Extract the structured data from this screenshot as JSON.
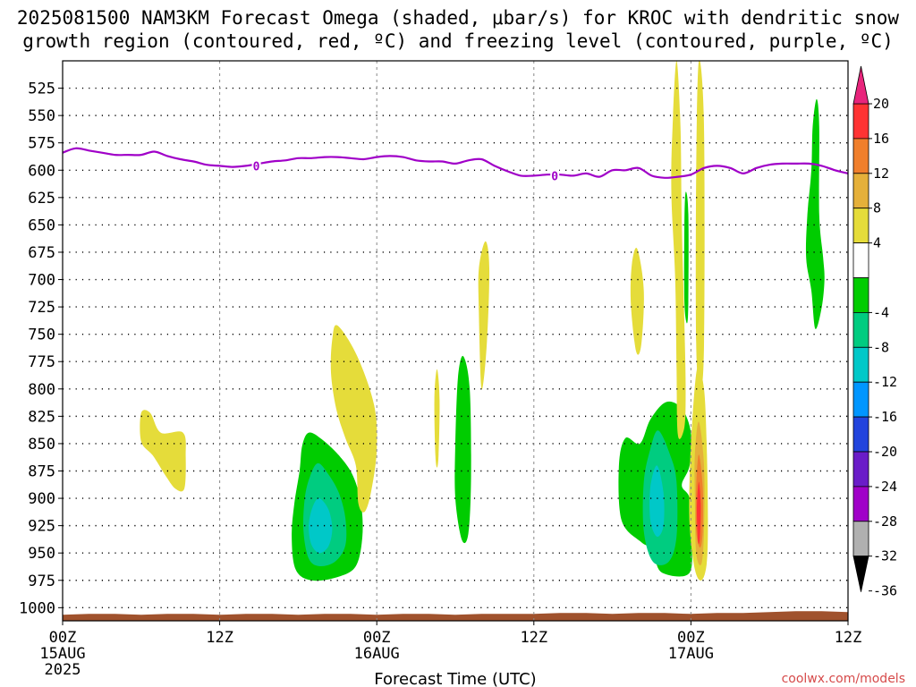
{
  "title_line1": "2025081500 NAM3KM Forecast Omega (shaded, μbar/s) for KROC with dendritic snow",
  "title_line2": "growth region (contoured, red, ºC) and freezing level (contoured, purple, ºC)",
  "xlabel": "Forecast Time (UTC)",
  "credit": "coolwx.com/models",
  "chart_data": {
    "type": "heatmap",
    "x_axis": {
      "unit": "hours since 2025-08-15 00Z",
      "range": [
        0,
        60
      ],
      "ticks": [
        {
          "x": 0,
          "label": [
            "00Z",
            "15AUG",
            "2025"
          ]
        },
        {
          "x": 12,
          "label": [
            "12Z"
          ]
        },
        {
          "x": 24,
          "label": [
            "00Z",
            "16AUG"
          ]
        },
        {
          "x": 36,
          "label": [
            "12Z"
          ]
        },
        {
          "x": 48,
          "label": [
            "00Z",
            "17AUG"
          ]
        },
        {
          "x": 60,
          "label": [
            "12Z"
          ]
        }
      ]
    },
    "y_axis": {
      "unit": "hPa",
      "range": [
        1012,
        500
      ],
      "ticks": [
        525,
        550,
        575,
        600,
        625,
        650,
        675,
        700,
        725,
        750,
        775,
        800,
        825,
        850,
        875,
        900,
        925,
        950,
        975,
        1000
      ]
    },
    "colorbar": {
      "levels": [
        "20",
        "16",
        "12",
        "8",
        "4",
        "-4",
        "-8",
        "-12",
        "-16",
        "-20",
        "-24",
        "-28",
        "-32",
        "-36"
      ],
      "bins": [
        {
          "from": 16,
          "to": 20,
          "color": "#ff3333"
        },
        {
          "from": 12,
          "to": 16,
          "color": "#f07f2c"
        },
        {
          "from": 8,
          "to": 12,
          "color": "#e5b03a"
        },
        {
          "from": 4,
          "to": 8,
          "color": "#e5dc3a"
        },
        {
          "from": -4,
          "to": 4,
          "color": "#ffffff"
        },
        {
          "from": -8,
          "to": -4,
          "color": "#00cc00"
        },
        {
          "from": -12,
          "to": -8,
          "color": "#00cc80"
        },
        {
          "from": -16,
          "to": -12,
          "color": "#00c8c8"
        },
        {
          "from": -20,
          "to": -16,
          "color": "#0096ff"
        },
        {
          "from": -24,
          "to": -20,
          "color": "#2244dd"
        },
        {
          "from": -28,
          "to": -24,
          "color": "#6a1cc8"
        },
        {
          "from": -32,
          "to": -28,
          "color": "#a000c8"
        },
        {
          "from": -36,
          "to": -32,
          "color": "#b0b0b0"
        }
      ],
      "top_arrow_color": "#e8257c",
      "bottom_arrow_color": "#000000"
    },
    "freezing_level": {
      "label": "0",
      "color": "#a000c8",
      "points": [
        [
          0,
          584
        ],
        [
          1,
          580
        ],
        [
          2,
          582
        ],
        [
          3,
          584
        ],
        [
          4,
          586
        ],
        [
          5,
          586
        ],
        [
          6,
          586
        ],
        [
          7,
          583
        ],
        [
          8,
          587
        ],
        [
          9,
          590
        ],
        [
          10,
          592
        ],
        [
          11,
          595
        ],
        [
          12,
          596
        ],
        [
          13,
          597
        ],
        [
          14,
          596
        ],
        [
          15,
          594
        ],
        [
          16,
          592
        ],
        [
          17,
          591
        ],
        [
          18,
          589
        ],
        [
          19,
          589
        ],
        [
          20,
          588
        ],
        [
          21,
          588
        ],
        [
          22,
          589
        ],
        [
          23,
          590
        ],
        [
          24,
          588
        ],
        [
          25,
          587
        ],
        [
          26,
          588
        ],
        [
          27,
          591
        ],
        [
          28,
          592
        ],
        [
          29,
          592
        ],
        [
          30,
          594
        ],
        [
          31,
          591
        ],
        [
          32,
          590
        ],
        [
          33,
          596
        ],
        [
          34,
          601
        ],
        [
          35,
          605
        ],
        [
          36,
          605
        ],
        [
          37,
          604
        ],
        [
          38,
          604
        ],
        [
          39,
          605
        ],
        [
          40,
          603
        ],
        [
          41,
          606
        ],
        [
          42,
          600
        ],
        [
          43,
          600
        ],
        [
          44,
          598
        ],
        [
          45,
          605
        ],
        [
          46,
          607
        ],
        [
          47,
          606
        ],
        [
          48,
          604
        ],
        [
          49,
          598
        ],
        [
          50,
          596
        ],
        [
          51,
          598
        ],
        [
          52,
          603
        ],
        [
          53,
          598
        ],
        [
          54,
          595
        ],
        [
          55,
          594
        ],
        [
          56,
          594
        ],
        [
          57,
          594
        ],
        [
          58,
          596
        ],
        [
          59,
          600
        ],
        [
          60,
          603
        ]
      ]
    },
    "surface_pressure": {
      "approx": 1006,
      "color": "#a0522d"
    },
    "regions": [
      {
        "name": "omega-+4-8-region",
        "value_bin": "4 to 8",
        "color": "#e5dc3a",
        "outline": [
          [
            6.0,
            822
          ],
          [
            6.7,
            822
          ],
          [
            7.5,
            840
          ],
          [
            9.2,
            840
          ],
          [
            9.4,
            862
          ],
          [
            9.3,
            891
          ],
          [
            8.6,
            891
          ],
          [
            7.8,
            878
          ],
          [
            6.9,
            861
          ],
          [
            6.0,
            848
          ]
        ]
      },
      {
        "name": "omega--4--8-region",
        "value_bin": "-4 to -8",
        "color": "#00cc00",
        "outline": [
          [
            18.8,
            840
          ],
          [
            19.8,
            846
          ],
          [
            21.2,
            862
          ],
          [
            22.2,
            880
          ],
          [
            22.8,
            905
          ],
          [
            22.9,
            935
          ],
          [
            22.4,
            962
          ],
          [
            21.0,
            972
          ],
          [
            19.0,
            975
          ],
          [
            17.8,
            965
          ],
          [
            17.5,
            935
          ],
          [
            17.7,
            905
          ],
          [
            18.1,
            875
          ],
          [
            18.3,
            852
          ]
        ]
      },
      {
        "name": "omega--8--12-region",
        "value_bin": "-8 to -12",
        "color": "#00cc80",
        "outline": [
          [
            19.5,
            868
          ],
          [
            20.3,
            878
          ],
          [
            21.1,
            895
          ],
          [
            21.6,
            918
          ],
          [
            21.6,
            943
          ],
          [
            20.8,
            958
          ],
          [
            19.6,
            962
          ],
          [
            18.8,
            955
          ],
          [
            18.4,
            930
          ],
          [
            18.5,
            900
          ],
          [
            18.9,
            880
          ]
        ]
      },
      {
        "name": "omega--12--16-region",
        "value_bin": "-12 to -16",
        "color": "#00c8c8",
        "outline": [
          [
            19.6,
            900
          ],
          [
            20.3,
            910
          ],
          [
            20.6,
            928
          ],
          [
            20.3,
            944
          ],
          [
            19.6,
            950
          ],
          [
            19.0,
            942
          ],
          [
            18.8,
            925
          ],
          [
            19.1,
            908
          ]
        ]
      },
      {
        "name": "omega-+4-8-region",
        "value_bin": "4 to 8",
        "color": "#e5dc3a",
        "outline": [
          [
            21.0,
            742
          ],
          [
            22.5,
            770
          ],
          [
            23.8,
            815
          ],
          [
            24.0,
            855
          ],
          [
            23.6,
            892
          ],
          [
            23.1,
            912
          ],
          [
            22.6,
            905
          ],
          [
            22.4,
            870
          ],
          [
            21.6,
            845
          ],
          [
            20.9,
            818
          ],
          [
            20.5,
            785
          ],
          [
            20.6,
            755
          ]
        ]
      },
      {
        "name": "omega-+4-8-region",
        "value_bin": "4 to 8",
        "color": "#e5dc3a",
        "outline": [
          [
            28.6,
            782
          ],
          [
            28.8,
            810
          ],
          [
            28.7,
            865
          ],
          [
            28.5,
            865
          ],
          [
            28.4,
            810
          ]
        ]
      },
      {
        "name": "omega--4--8-region",
        "value_bin": "-4 to -8",
        "color": "#00cc00",
        "outline": [
          [
            30.6,
            770
          ],
          [
            31.1,
            800
          ],
          [
            31.2,
            880
          ],
          [
            31.0,
            932
          ],
          [
            30.5,
            938
          ],
          [
            30.0,
            900
          ],
          [
            30.0,
            850
          ],
          [
            30.2,
            790
          ]
        ]
      },
      {
        "name": "omega-+4-8-region",
        "value_bin": "4 to 8",
        "color": "#e5dc3a",
        "outline": [
          [
            32.3,
            665
          ],
          [
            32.6,
            690
          ],
          [
            32.4,
            760
          ],
          [
            32.0,
            800
          ],
          [
            31.8,
            730
          ],
          [
            31.8,
            690
          ]
        ]
      },
      {
        "name": "omega-+4-8-region",
        "value_bin": "4 to 8",
        "color": "#e5dc3a",
        "outline": [
          [
            43.9,
            672
          ],
          [
            44.4,
            710
          ],
          [
            44.2,
            760
          ],
          [
            43.8,
            765
          ],
          [
            43.4,
            720
          ],
          [
            43.5,
            685
          ]
        ]
      },
      {
        "name": "omega--4--8-region",
        "value_bin": "-4 to -8",
        "color": "#00cc00",
        "outline": [
          [
            46.1,
            812
          ],
          [
            47.3,
            818
          ],
          [
            48.0,
            840
          ],
          [
            47.9,
            870
          ],
          [
            47.3,
            888
          ],
          [
            47.9,
            900
          ],
          [
            48.0,
            930
          ],
          [
            47.9,
            968
          ],
          [
            45.8,
            968
          ],
          [
            45.2,
            952
          ],
          [
            45.0,
            945
          ],
          [
            44.2,
            940
          ],
          [
            42.7,
            920
          ],
          [
            42.5,
            870
          ],
          [
            43.0,
            845
          ],
          [
            44.1,
            850
          ],
          [
            44.9,
            828
          ]
        ]
      },
      {
        "name": "omega--8--12-region",
        "value_bin": "-8 to -12",
        "color": "#00cc80",
        "outline": [
          [
            45.5,
            838
          ],
          [
            46.4,
            860
          ],
          [
            46.9,
            885
          ],
          [
            46.9,
            935
          ],
          [
            46.3,
            958
          ],
          [
            45.1,
            958
          ],
          [
            44.4,
            930
          ],
          [
            44.4,
            885
          ],
          [
            44.9,
            855
          ]
        ]
      },
      {
        "name": "omega--12--16-region",
        "value_bin": "-12 to -16",
        "color": "#00c8c8",
        "outline": [
          [
            45.4,
            870
          ],
          [
            45.9,
            895
          ],
          [
            45.9,
            925
          ],
          [
            45.4,
            935
          ],
          [
            44.9,
            920
          ],
          [
            44.9,
            890
          ]
        ]
      },
      {
        "name": "omega-+4-8-region",
        "value_bin": "4 to 8",
        "color": "#e5dc3a",
        "outline": [
          [
            46.9,
            500
          ],
          [
            47.2,
            560
          ],
          [
            47.3,
            650
          ],
          [
            47.5,
            740
          ],
          [
            47.6,
            800
          ],
          [
            47.5,
            835
          ],
          [
            47.0,
            842
          ],
          [
            46.9,
            780
          ],
          [
            46.8,
            700
          ],
          [
            46.5,
            620
          ],
          [
            46.6,
            560
          ]
        ]
      },
      {
        "name": "omega--4--8-region",
        "value_bin": "-4 to -8",
        "color": "#00cc00",
        "outline": [
          [
            47.3,
            895
          ],
          [
            47.8,
            915
          ],
          [
            47.8,
            945
          ],
          [
            47.4,
            950
          ],
          [
            47.1,
            920
          ]
        ]
      },
      {
        "name": "omega--4--8-region",
        "value_bin": "-4 to -8",
        "color": "#00cc00",
        "outline": [
          [
            47.6,
            620
          ],
          [
            47.8,
            640
          ],
          [
            47.8,
            720
          ],
          [
            47.7,
            740
          ],
          [
            47.5,
            720
          ],
          [
            47.5,
            650
          ]
        ]
      },
      {
        "name": "omega-+4-8-region",
        "value_bin": "4 to 8",
        "color": "#e5dc3a",
        "outline": [
          [
            48.6,
            500
          ],
          [
            49.0,
            560
          ],
          [
            49.0,
            760
          ],
          [
            48.7,
            800
          ],
          [
            48.4,
            760
          ],
          [
            48.4,
            600
          ]
        ]
      },
      {
        "name": "omega-+4-8-region",
        "value_bin": "4 to 8",
        "color": "#e5dc3a",
        "outline": [
          [
            48.5,
            780
          ],
          [
            49.0,
            800
          ],
          [
            49.2,
            850
          ],
          [
            49.3,
            920
          ],
          [
            49.2,
            960
          ],
          [
            48.8,
            975
          ],
          [
            48.3,
            965
          ],
          [
            47.9,
            925
          ],
          [
            47.9,
            880
          ],
          [
            48.1,
            830
          ]
        ]
      },
      {
        "name": "omega-+8-12-region",
        "value_bin": "8 to 12",
        "color": "#e5b03a",
        "outline": [
          [
            48.6,
            830
          ],
          [
            49.0,
            870
          ],
          [
            49.0,
            930
          ],
          [
            48.8,
            960
          ],
          [
            48.4,
            950
          ],
          [
            48.3,
            900
          ],
          [
            48.3,
            860
          ]
        ]
      },
      {
        "name": "omega-+12-16-region",
        "value_bin": "12 to 16",
        "color": "#f07f2c",
        "outline": [
          [
            48.6,
            860
          ],
          [
            48.9,
            890
          ],
          [
            48.9,
            930
          ],
          [
            48.7,
            945
          ],
          [
            48.4,
            930
          ],
          [
            48.4,
            890
          ]
        ]
      },
      {
        "name": "omega-+16-20-region",
        "value_bin": "16 to 20",
        "color": "#ff3333",
        "outline": [
          [
            48.6,
            885
          ],
          [
            48.75,
            905
          ],
          [
            48.7,
            935
          ],
          [
            48.55,
            940
          ],
          [
            48.45,
            910
          ]
        ]
      },
      {
        "name": "omega--4--8-region",
        "value_bin": "-4 to -8",
        "color": "#00cc00",
        "outline": [
          [
            57.6,
            535
          ],
          [
            57.8,
            560
          ],
          [
            57.8,
            640
          ],
          [
            58.1,
            680
          ],
          [
            58.2,
            700
          ],
          [
            58.0,
            725
          ],
          [
            57.5,
            745
          ],
          [
            57.2,
            710
          ],
          [
            56.8,
            680
          ],
          [
            56.9,
            640
          ],
          [
            57.2,
            600
          ],
          [
            57.3,
            560
          ]
        ]
      }
    ]
  }
}
